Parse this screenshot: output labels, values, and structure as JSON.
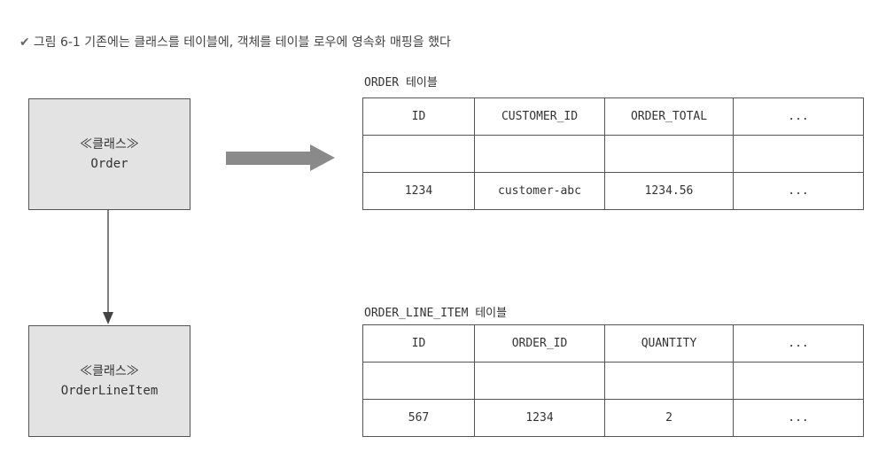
{
  "caption": {
    "marker": "✔",
    "text": "그림 6-1 기존에는 클래스를 테이블에, 객체를 테이블 로우에 영속화 매핑을 했다"
  },
  "classes": {
    "order": {
      "stereotype": "≪클래스≫",
      "name": "Order"
    },
    "order_line_item": {
      "stereotype": "≪클래스≫",
      "name": "OrderLineItem"
    }
  },
  "tables": {
    "order": {
      "title": "ORDER 테이블",
      "headers": [
        "ID",
        "CUSTOMER_ID",
        "ORDER_TOTAL",
        "..."
      ],
      "rows": [
        [
          "",
          "",
          "",
          ""
        ],
        [
          "1234",
          "customer-abc",
          "1234.56",
          "..."
        ]
      ]
    },
    "order_line_item": {
      "title": "ORDER_LINE_ITEM 테이블",
      "headers": [
        "ID",
        "ORDER_ID",
        "QUANTITY",
        "..."
      ],
      "rows": [
        [
          "",
          "",
          "",
          ""
        ],
        [
          "567",
          "1234",
          "2",
          "..."
        ]
      ]
    }
  },
  "colors": {
    "class_fill": "#e3e3e3",
    "arrow_fill": "#8a8a8a",
    "line": "#555555"
  }
}
